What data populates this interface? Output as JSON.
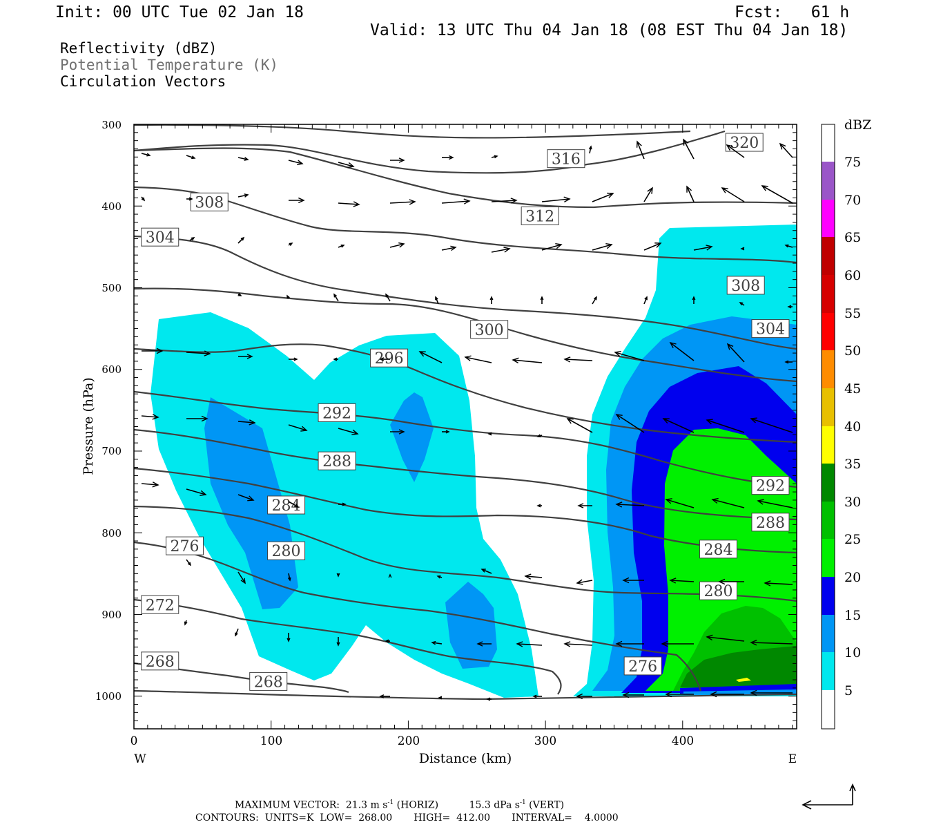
{
  "header": {
    "init": "Init: 00 UTC Tue 02 Jan 18",
    "fcst": "Fcst:   61 h",
    "valid": "Valid: 13 UTC Thu 04 Jan 18 (08 EST Thu 04 Jan 18)"
  },
  "fields": {
    "reflectivity": "Reflectivity (dBZ)",
    "theta": "Potential Temperature (K)",
    "vectors": "Circulation Vectors"
  },
  "colors": {
    "c5": "#00e8ee",
    "c10": "#0096f5",
    "c15": "#0000ee",
    "c20": "#00f000",
    "c25": "#00c000",
    "c30": "#008800",
    "c35": "#ffff00",
    "c40": "#e8c000",
    "c45": "#ff8c00",
    "c50": "#ff0000",
    "c55": "#d60000",
    "c60": "#c00000",
    "c65": "#ff00ff",
    "c70": "#9a55c8",
    "c75": "#ffffff",
    "contour": "#404040",
    "vector": "#000000"
  },
  "chart_data": {
    "type": "cross-section",
    "xlabel": "Distance (km)",
    "ylabel": "Pressure (hPa)",
    "xlim": [
      0,
      483
    ],
    "ylim": [
      1040,
      300
    ],
    "x_ticks": [
      "0",
      "100",
      "200",
      "300",
      "400"
    ],
    "y_ticks": [
      "300",
      "400",
      "500",
      "600",
      "700",
      "800",
      "900",
      "1000"
    ],
    "west_label": "W",
    "east_label": "E",
    "colorbar": {
      "unit": "dBZ",
      "levels": [
        "5",
        "10",
        "15",
        "20",
        "25",
        "30",
        "35",
        "40",
        "45",
        "50",
        "55",
        "60",
        "65",
        "70",
        "75"
      ]
    },
    "contour_labels": [
      {
        "label": "320",
        "x": 445,
        "p": 322
      },
      {
        "label": "316",
        "x": 315,
        "p": 342
      },
      {
        "label": "312",
        "x": 296,
        "p": 412
      },
      {
        "label": "308",
        "x": 55,
        "p": 395
      },
      {
        "label": "308",
        "x": 446,
        "p": 497
      },
      {
        "label": "304",
        "x": 19,
        "p": 438
      },
      {
        "label": "304",
        "x": 464,
        "p": 550
      },
      {
        "label": "300",
        "x": 259,
        "p": 551
      },
      {
        "label": "296",
        "x": 186,
        "p": 586
      },
      {
        "label": "292",
        "x": 148,
        "p": 653
      },
      {
        "label": "292",
        "x": 464,
        "p": 742
      },
      {
        "label": "288",
        "x": 148,
        "p": 712
      },
      {
        "label": "288",
        "x": 464,
        "p": 787
      },
      {
        "label": "284",
        "x": 111,
        "p": 766
      },
      {
        "label": "284",
        "x": 426,
        "p": 820
      },
      {
        "label": "280",
        "x": 111,
        "p": 822
      },
      {
        "label": "280",
        "x": 426,
        "p": 871
      },
      {
        "label": "276",
        "x": 37,
        "p": 816
      },
      {
        "label": "276",
        "x": 371,
        "p": 963
      },
      {
        "label": "272",
        "x": 19,
        "p": 888
      },
      {
        "label": "268",
        "x": 19,
        "p": 957
      },
      {
        "label": "268",
        "x": 98,
        "p": 982
      }
    ]
  },
  "footer": {
    "max_vector": "MAXIMUM VECTOR:  21.3 m s",
    "horiz": " (HORIZ)",
    "vert_val": "15.3 dPa s",
    "vert": " (VERT)",
    "sup": "-1",
    "contours": "CONTOURS:  UNITS=K  LOW=  268.00       HIGH=  412.00       INTERVAL=    4.0000"
  }
}
